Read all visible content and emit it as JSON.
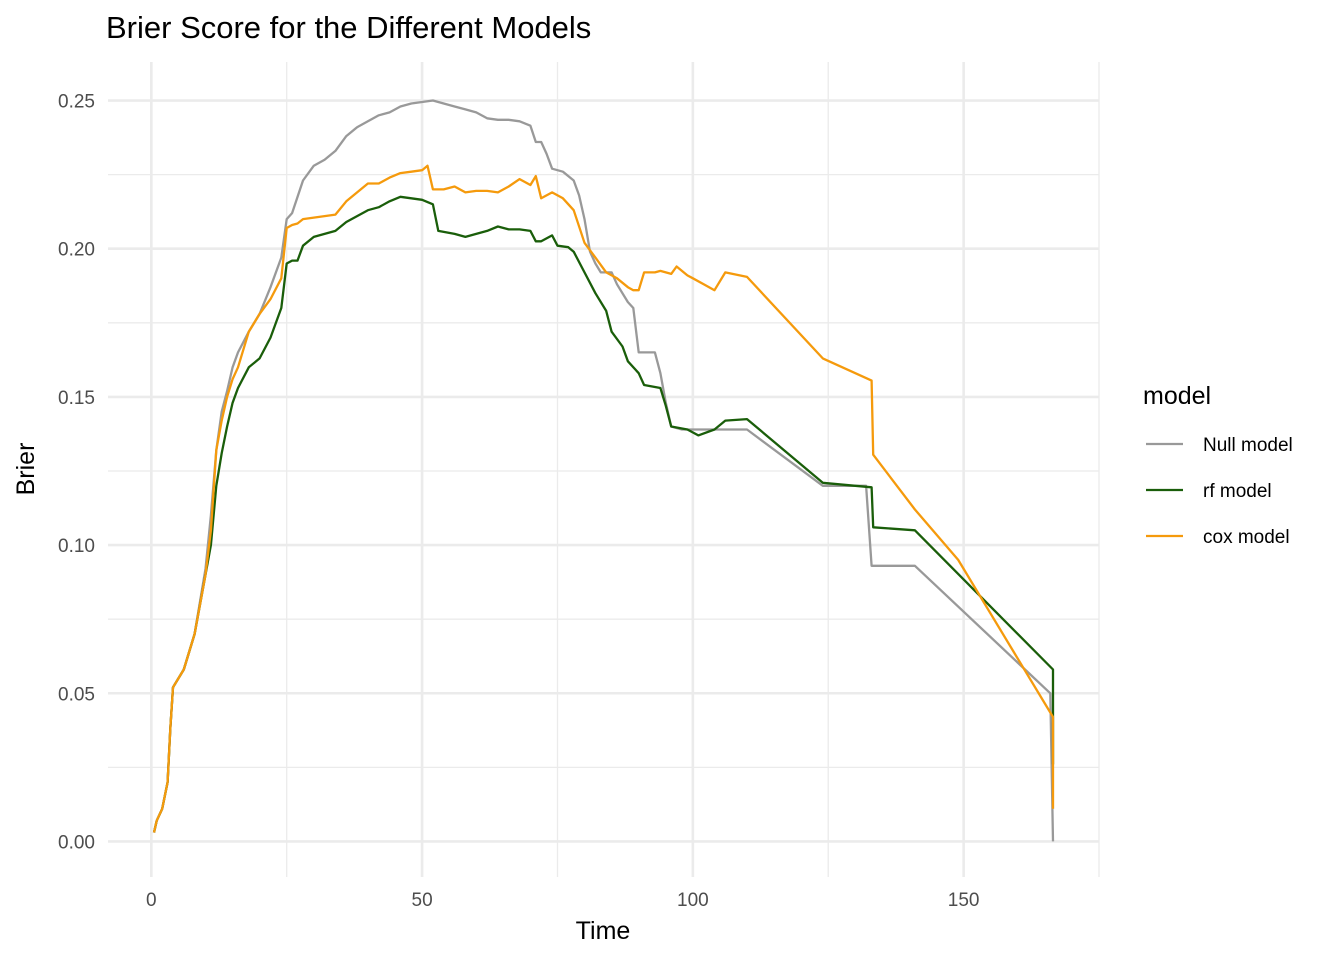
{
  "chart_data": {
    "type": "line",
    "title": "Brier Score for the Different Models",
    "xlabel": "Time",
    "ylabel": "Brier",
    "xlim": [
      -8,
      175
    ],
    "ylim": [
      -0.012,
      0.263
    ],
    "x_ticks": [
      0,
      50,
      100,
      150
    ],
    "x_tick_labels": [
      "0",
      "50",
      "100",
      "150"
    ],
    "y_ticks": [
      0,
      0.05,
      0.1,
      0.15,
      0.2,
      0.25
    ],
    "y_tick_labels": [
      "0.00",
      "0.05",
      "0.10",
      "0.15",
      "0.20",
      "0.25"
    ],
    "grid": true,
    "legend": {
      "title": "model",
      "position": "right"
    },
    "series": [
      {
        "name": "Null model",
        "color": "#999999",
        "points": [
          [
            0.5,
            0.003
          ],
          [
            1,
            0.007
          ],
          [
            2,
            0.011
          ],
          [
            3,
            0.02
          ],
          [
            3.5,
            0.038
          ],
          [
            4,
            0.052
          ],
          [
            6,
            0.058
          ],
          [
            8,
            0.07
          ],
          [
            10,
            0.092
          ],
          [
            11,
            0.11
          ],
          [
            12,
            0.132
          ],
          [
            13,
            0.145
          ],
          [
            14,
            0.152
          ],
          [
            15,
            0.16
          ],
          [
            16,
            0.165
          ],
          [
            18,
            0.172
          ],
          [
            20,
            0.178
          ],
          [
            22,
            0.187
          ],
          [
            24,
            0.197
          ],
          [
            25,
            0.21
          ],
          [
            26,
            0.212
          ],
          [
            28,
            0.223
          ],
          [
            30,
            0.228
          ],
          [
            32,
            0.23
          ],
          [
            34,
            0.233
          ],
          [
            36,
            0.238
          ],
          [
            38,
            0.241
          ],
          [
            40,
            0.243
          ],
          [
            42,
            0.245
          ],
          [
            44,
            0.246
          ],
          [
            46,
            0.248
          ],
          [
            48,
            0.249
          ],
          [
            50,
            0.2495
          ],
          [
            52,
            0.25
          ],
          [
            54,
            0.249
          ],
          [
            56,
            0.248
          ],
          [
            58,
            0.247
          ],
          [
            60,
            0.246
          ],
          [
            62,
            0.244
          ],
          [
            64,
            0.2435
          ],
          [
            66,
            0.2435
          ],
          [
            68,
            0.243
          ],
          [
            70,
            0.2415
          ],
          [
            71,
            0.236
          ],
          [
            72,
            0.236
          ],
          [
            73,
            0.232
          ],
          [
            74,
            0.227
          ],
          [
            76,
            0.226
          ],
          [
            78,
            0.223
          ],
          [
            79,
            0.218
          ],
          [
            80,
            0.21
          ],
          [
            81,
            0.199
          ],
          [
            82,
            0.195
          ],
          [
            83,
            0.192
          ],
          [
            85,
            0.192
          ],
          [
            86,
            0.188
          ],
          [
            88,
            0.182
          ],
          [
            89,
            0.18
          ],
          [
            90,
            0.165
          ],
          [
            92,
            0.165
          ],
          [
            93,
            0.165
          ],
          [
            94,
            0.158
          ],
          [
            95,
            0.148
          ],
          [
            96,
            0.14
          ],
          [
            98,
            0.139
          ],
          [
            100,
            0.139
          ],
          [
            104,
            0.139
          ],
          [
            110,
            0.139
          ],
          [
            124,
            0.12
          ],
          [
            132,
            0.12
          ],
          [
            133,
            0.093
          ],
          [
            141,
            0.093
          ],
          [
            166,
            0.05
          ],
          [
            166.5,
            0
          ]
        ]
      },
      {
        "name": "rf model",
        "color": "#1a5e0a",
        "points": [
          [
            0.5,
            0.003
          ],
          [
            1,
            0.007
          ],
          [
            2,
            0.011
          ],
          [
            3,
            0.02
          ],
          [
            3.5,
            0.038
          ],
          [
            4,
            0.052
          ],
          [
            6,
            0.058
          ],
          [
            8,
            0.07
          ],
          [
            10,
            0.09
          ],
          [
            11,
            0.1
          ],
          [
            12,
            0.12
          ],
          [
            13,
            0.131
          ],
          [
            14,
            0.14
          ],
          [
            15,
            0.148
          ],
          [
            16,
            0.153
          ],
          [
            18,
            0.16
          ],
          [
            20,
            0.163
          ],
          [
            22,
            0.17
          ],
          [
            24,
            0.18
          ],
          [
            25,
            0.195
          ],
          [
            26,
            0.196
          ],
          [
            27,
            0.196
          ],
          [
            28,
            0.201
          ],
          [
            30,
            0.204
          ],
          [
            32,
            0.205
          ],
          [
            34,
            0.206
          ],
          [
            36,
            0.209
          ],
          [
            38,
            0.211
          ],
          [
            40,
            0.213
          ],
          [
            42,
            0.214
          ],
          [
            44,
            0.216
          ],
          [
            46,
            0.2175
          ],
          [
            48,
            0.217
          ],
          [
            50,
            0.2165
          ],
          [
            52,
            0.215
          ],
          [
            53,
            0.206
          ],
          [
            56,
            0.205
          ],
          [
            58,
            0.204
          ],
          [
            60,
            0.205
          ],
          [
            62,
            0.206
          ],
          [
            64,
            0.2075
          ],
          [
            66,
            0.2065
          ],
          [
            68,
            0.2065
          ],
          [
            70,
            0.206
          ],
          [
            71,
            0.2025
          ],
          [
            72,
            0.2025
          ],
          [
            74,
            0.2045
          ],
          [
            75,
            0.201
          ],
          [
            77,
            0.2005
          ],
          [
            78,
            0.199
          ],
          [
            80,
            0.192
          ],
          [
            82,
            0.185
          ],
          [
            84,
            0.179
          ],
          [
            85,
            0.172
          ],
          [
            87,
            0.167
          ],
          [
            88,
            0.162
          ],
          [
            90,
            0.158
          ],
          [
            91,
            0.154
          ],
          [
            94,
            0.153
          ],
          [
            95,
            0.147
          ],
          [
            96,
            0.14
          ],
          [
            99,
            0.139
          ],
          [
            101,
            0.137
          ],
          [
            104,
            0.139
          ],
          [
            106,
            0.142
          ],
          [
            110,
            0.1425
          ],
          [
            124,
            0.121
          ],
          [
            133,
            0.1195
          ],
          [
            133.3,
            0.106
          ],
          [
            141,
            0.105
          ],
          [
            166.5,
            0.058
          ],
          [
            166.5,
            0.026
          ]
        ]
      },
      {
        "name": "cox model",
        "color": "#f59a0c",
        "points": [
          [
            0.5,
            0.003
          ],
          [
            1,
            0.007
          ],
          [
            2,
            0.011
          ],
          [
            3,
            0.02
          ],
          [
            3.5,
            0.038
          ],
          [
            4,
            0.052
          ],
          [
            6,
            0.058
          ],
          [
            8,
            0.07
          ],
          [
            10,
            0.09
          ],
          [
            11,
            0.105
          ],
          [
            12,
            0.132
          ],
          [
            13,
            0.142
          ],
          [
            14,
            0.15
          ],
          [
            15,
            0.156
          ],
          [
            16,
            0.16
          ],
          [
            18,
            0.172
          ],
          [
            20,
            0.178
          ],
          [
            22,
            0.183
          ],
          [
            24,
            0.19
          ],
          [
            25,
            0.207
          ],
          [
            26,
            0.208
          ],
          [
            27,
            0.2085
          ],
          [
            28,
            0.21
          ],
          [
            30,
            0.2105
          ],
          [
            32,
            0.211
          ],
          [
            34,
            0.2115
          ],
          [
            36,
            0.216
          ],
          [
            38,
            0.219
          ],
          [
            40,
            0.222
          ],
          [
            42,
            0.222
          ],
          [
            44,
            0.224
          ],
          [
            46,
            0.2255
          ],
          [
            48,
            0.226
          ],
          [
            50,
            0.2265
          ],
          [
            51,
            0.228
          ],
          [
            52,
            0.22
          ],
          [
            54,
            0.22
          ],
          [
            56,
            0.221
          ],
          [
            58,
            0.219
          ],
          [
            60,
            0.2195
          ],
          [
            62,
            0.2195
          ],
          [
            64,
            0.219
          ],
          [
            66,
            0.221
          ],
          [
            68,
            0.2235
          ],
          [
            70,
            0.2215
          ],
          [
            71,
            0.2245
          ],
          [
            72,
            0.217
          ],
          [
            74,
            0.219
          ],
          [
            76,
            0.217
          ],
          [
            78,
            0.213
          ],
          [
            80,
            0.202
          ],
          [
            82,
            0.197
          ],
          [
            84,
            0.192
          ],
          [
            86,
            0.19
          ],
          [
            88,
            0.187
          ],
          [
            89,
            0.186
          ],
          [
            90,
            0.186
          ],
          [
            91,
            0.192
          ],
          [
            93,
            0.192
          ],
          [
            94,
            0.1925
          ],
          [
            96,
            0.1915
          ],
          [
            97,
            0.194
          ],
          [
            99,
            0.191
          ],
          [
            100,
            0.19
          ],
          [
            102,
            0.188
          ],
          [
            104,
            0.186
          ],
          [
            106,
            0.192
          ],
          [
            110,
            0.1905
          ],
          [
            124,
            0.163
          ],
          [
            133,
            0.1555
          ],
          [
            133.3,
            0.1305
          ],
          [
            141,
            0.112
          ],
          [
            149,
            0.095
          ],
          [
            166.5,
            0.042
          ],
          [
            166.5,
            0.011
          ]
        ]
      }
    ]
  }
}
